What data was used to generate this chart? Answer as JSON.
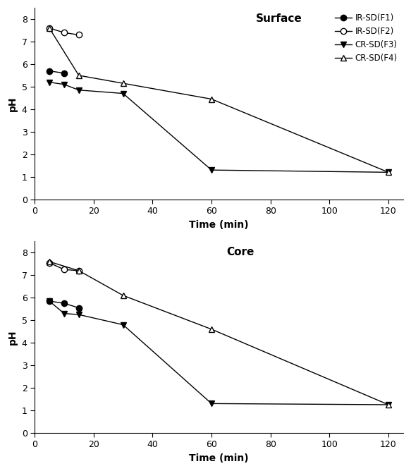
{
  "surface": {
    "F1": {
      "x": [
        5,
        10
      ],
      "y": [
        5.7,
        5.6
      ]
    },
    "F2": {
      "x": [
        5,
        10,
        15
      ],
      "y": [
        7.6,
        7.4,
        7.3
      ]
    },
    "F3": {
      "x": [
        5,
        10,
        15,
        30,
        60,
        120
      ],
      "y": [
        5.2,
        5.1,
        4.85,
        4.7,
        1.3,
        1.2
      ]
    },
    "F4": {
      "x": [
        5,
        15,
        30,
        60,
        120
      ],
      "y": [
        7.6,
        5.5,
        5.15,
        4.45,
        1.2
      ]
    }
  },
  "core": {
    "F1": {
      "x": [
        5,
        10,
        15
      ],
      "y": [
        5.85,
        5.75,
        5.55
      ]
    },
    "F2": {
      "x": [
        5,
        10,
        15
      ],
      "y": [
        7.55,
        7.25,
        7.2
      ]
    },
    "F3": {
      "x": [
        5,
        10,
        15,
        30,
        60,
        120
      ],
      "y": [
        5.85,
        5.3,
        5.25,
        4.8,
        1.3,
        1.25
      ]
    },
    "F4": {
      "x": [
        5,
        15,
        30,
        60,
        120
      ],
      "y": [
        7.6,
        7.2,
        6.1,
        4.6,
        1.25
      ]
    }
  },
  "xlim": [
    0,
    125
  ],
  "ylim": [
    0,
    8.5
  ],
  "xticks": [
    0,
    20,
    40,
    60,
    80,
    100,
    120
  ],
  "yticks": [
    0,
    1,
    2,
    3,
    4,
    5,
    6,
    7,
    8
  ],
  "xlabel": "Time (min)",
  "ylabel": "pH",
  "surface_title": "Surface",
  "core_title": "Core",
  "legend_labels": [
    "IR-SD(F1)",
    "IR-SD(F2)",
    "CR-SD(F3)",
    "CR-SD(F4)"
  ],
  "color": "#000000",
  "linewidth": 1.0,
  "markersize": 6,
  "title_fontsize": 11,
  "label_fontsize": 10,
  "tick_fontsize": 9,
  "legend_fontsize": 8.5
}
